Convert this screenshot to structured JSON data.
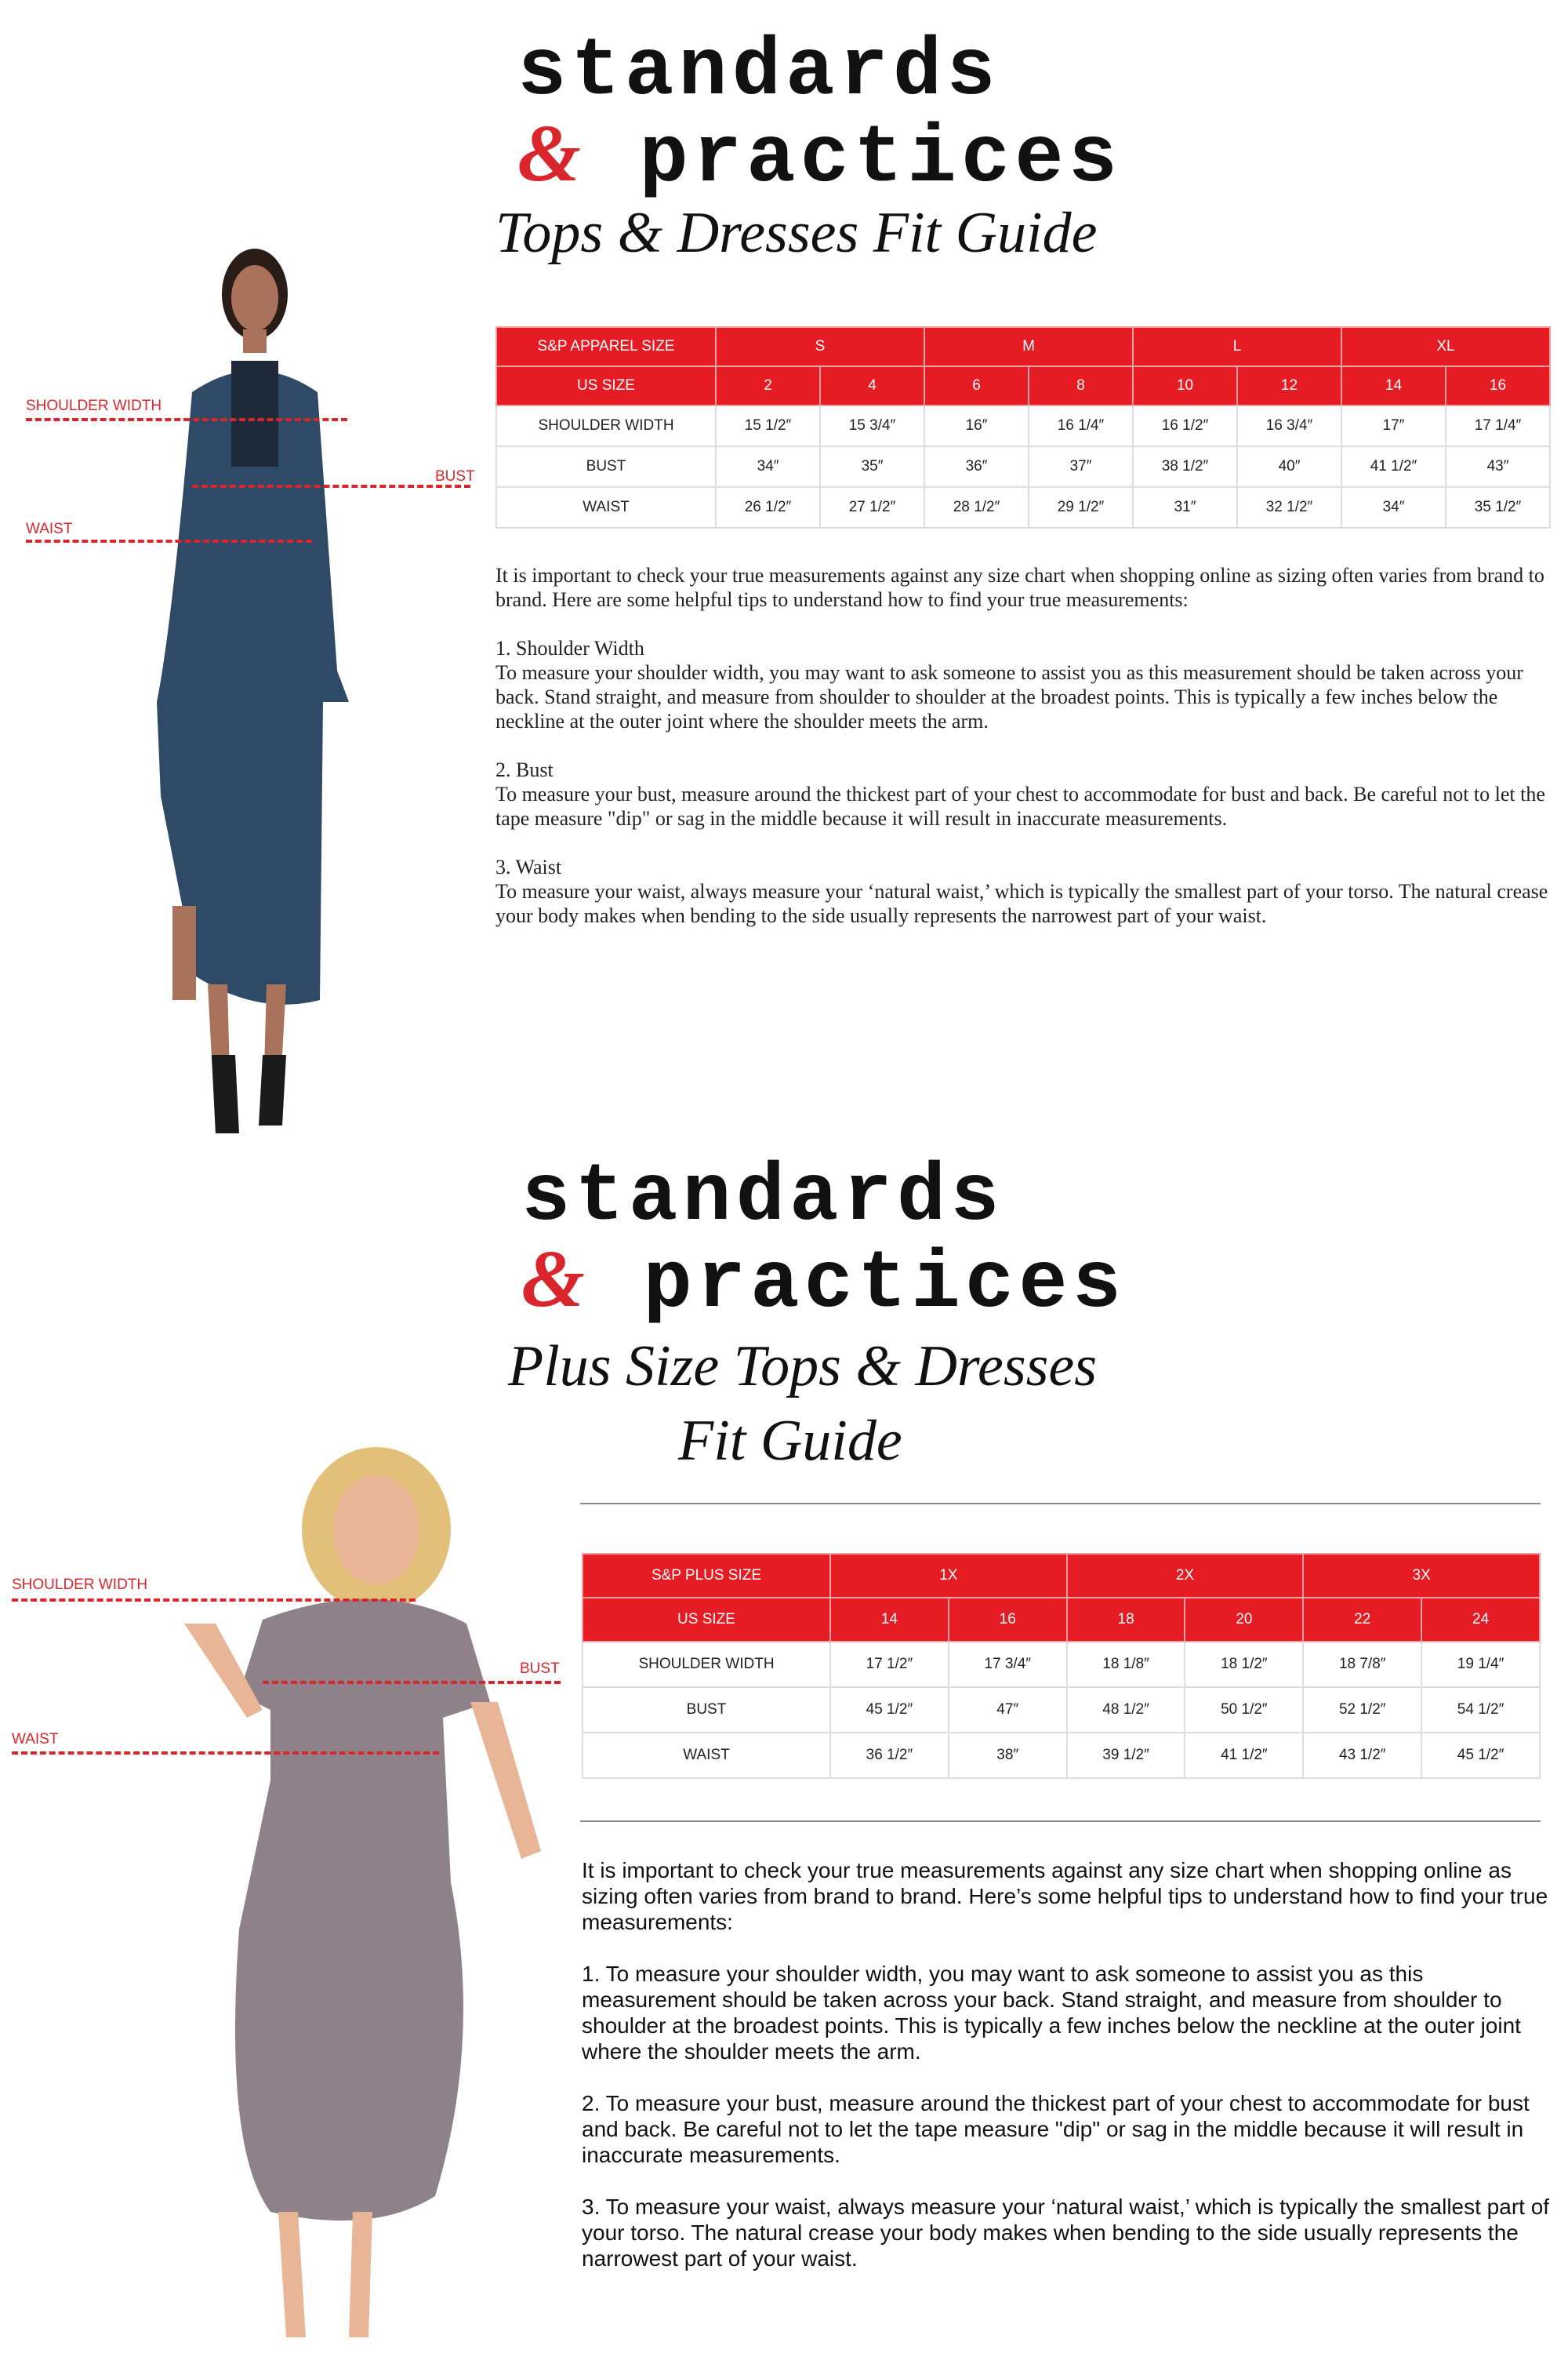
{
  "brand": {
    "line1": "standards",
    "amp": "&",
    "line2": "practices"
  },
  "section1": {
    "title": "Tops & Dresses Fit Guide",
    "labels": {
      "shoulder": "SHOULDER WIDTH",
      "bust": "BUST",
      "waist": "WAIST"
    },
    "table": {
      "size_header": "S&P APPAREL SIZE",
      "groups": [
        "S",
        "M",
        "L",
        "XL"
      ],
      "us_header": "US SIZE",
      "us_sizes": [
        "2",
        "4",
        "6",
        "8",
        "10",
        "12",
        "14",
        "16"
      ],
      "rows": [
        {
          "label": "SHOULDER WIDTH",
          "values": [
            "15 1/2″",
            "15 3/4″",
            "16″",
            "16 1/4″",
            "16 1/2″",
            "16 3/4″",
            "17″",
            "17 1/4″"
          ]
        },
        {
          "label": "BUST",
          "values": [
            "34″",
            "35″",
            "36″",
            "37″",
            "38 1/2″",
            "40″",
            "41 1/2″",
            "43″"
          ]
        },
        {
          "label": "WAIST",
          "values": [
            "26 1/2″",
            "27 1/2″",
            "28 1/2″",
            "29 1/2″",
            "31″",
            "32 1/2″",
            "34″",
            "35 1/2″"
          ]
        }
      ]
    },
    "text": "It is important to check your true measurements against any size chart when shopping online as sizing often varies from brand to brand. Here are some helpful tips to understand how to find your true measurements:\n\n1. Shoulder Width\nTo measure your shoulder width, you may want to ask someone to assist you as this measurement should be taken across your back. Stand straight, and measure from shoulder to shoulder at the broadest points. This is typically a few inches below the neckline at the outer joint where the shoulder meets the arm.\n\n2. Bust\nTo measure your bust, measure around the thickest part of your chest to accommodate for bust and back. Be careful not to let the tape measure \"dip\" or sag in the middle because it will result in inaccurate measurements.\n\n3. Waist\nTo measure your waist, always measure your ‘natural waist,’ which is typically the smallest part of your torso.  The natural crease your body makes when bending to the side usually represents the narrowest part of your waist."
  },
  "section2": {
    "title_line1": "Plus Size Tops & Dresses",
    "title_line2": "Fit Guide",
    "labels": {
      "shoulder": "SHOULDER WIDTH",
      "bust": "BUST",
      "waist": "WAIST"
    },
    "table": {
      "size_header": "S&P PLUS SIZE",
      "groups": [
        "1X",
        "2X",
        "3X"
      ],
      "us_header": "US SIZE",
      "us_sizes": [
        "14",
        "16",
        "18",
        "20",
        "22",
        "24"
      ],
      "rows": [
        {
          "label": "SHOULDER WIDTH",
          "values": [
            "17 1/2″",
            "17 3/4″",
            "18 1/8″",
            "18 1/2″",
            "18 7/8″",
            "19 1/4″"
          ]
        },
        {
          "label": "BUST",
          "values": [
            "45 1/2″",
            "47″",
            "48 1/2″",
            "50 1/2″",
            "52 1/2″",
            "54 1/2″"
          ]
        },
        {
          "label": "WAIST",
          "values": [
            "36 1/2″",
            "38″",
            "39 1/2″",
            "41 1/2″",
            "43 1/2″",
            "45 1/2″"
          ]
        }
      ]
    },
    "text": "It is important to check your true measurements against any size chart when shopping online as sizing often varies from brand to brand. Here’s some helpful tips to understand how to find your true measurements:\n\n1. To measure your shoulder width, you may want to ask someone to assist you as this measurement should be taken across your back. Stand straight, and measure from shoulder to shoulder at the broadest points. This is typically a few inches below the neckline at the outer joint where the shoulder meets the arm.\n\n2. To measure your bust, measure around the thickest part of your chest to accommodate for bust and back. Be careful not to let the tape measure \"dip\" or sag in the middle because it will result in inaccurate measurements.\n\n3. To measure your waist, always measure your  ‘natural waist,’  which is typically the smallest part of your torso. The natural crease your body makes when bending to the side usually represents the narrowest part of your waist."
  },
  "colors": {
    "accent": "#e51c23",
    "dress1": "#2f4a66",
    "dress2": "#8e8189"
  }
}
